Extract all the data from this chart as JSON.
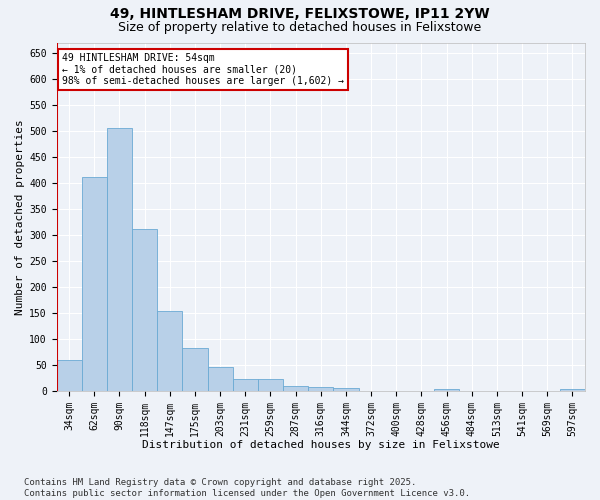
{
  "title": "49, HINTLESHAM DRIVE, FELIXSTOWE, IP11 2YW",
  "subtitle": "Size of property relative to detached houses in Felixstowe",
  "xlabel": "Distribution of detached houses by size in Felixstowe",
  "ylabel": "Number of detached properties",
  "footer": "Contains HM Land Registry data © Crown copyright and database right 2025.\nContains public sector information licensed under the Open Government Licence v3.0.",
  "categories": [
    "34sqm",
    "62sqm",
    "90sqm",
    "118sqm",
    "147sqm",
    "175sqm",
    "203sqm",
    "231sqm",
    "259sqm",
    "287sqm",
    "316sqm",
    "344sqm",
    "372sqm",
    "400sqm",
    "428sqm",
    "456sqm",
    "484sqm",
    "513sqm",
    "541sqm",
    "569sqm",
    "597sqm"
  ],
  "values": [
    60,
    412,
    505,
    312,
    153,
    83,
    46,
    22,
    23,
    10,
    7,
    6,
    0,
    0,
    0,
    4,
    0,
    0,
    0,
    0,
    4
  ],
  "bar_color": "#b8d0e8",
  "bar_edge_color": "#6aaad4",
  "annotation_text_line1": "49 HINTLESHAM DRIVE: 54sqm",
  "annotation_text_line2": "← 1% of detached houses are smaller (20)",
  "annotation_text_line3": "98% of semi-detached houses are larger (1,602) →",
  "annotation_box_color": "#ffffff",
  "annotation_box_edge": "#cc0000",
  "vline_color": "#cc0000",
  "ylim": [
    0,
    670
  ],
  "yticks": [
    0,
    50,
    100,
    150,
    200,
    250,
    300,
    350,
    400,
    450,
    500,
    550,
    600,
    650
  ],
  "bg_color": "#eef2f8",
  "grid_color": "#ffffff",
  "title_fontsize": 10,
  "subtitle_fontsize": 9,
  "axis_label_fontsize": 8,
  "tick_fontsize": 7,
  "annotation_fontsize": 7,
  "footer_fontsize": 6.5
}
